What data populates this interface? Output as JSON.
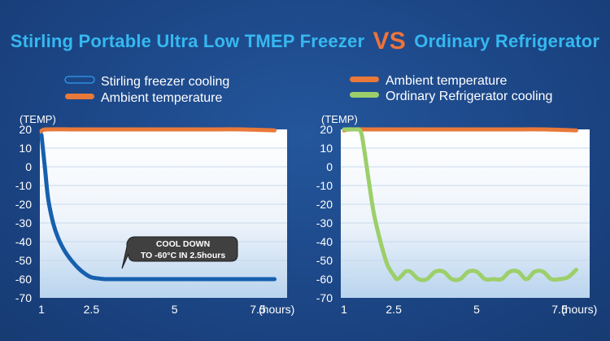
{
  "title": {
    "part1": "Stirling Portable Ultra Low TMEP Freezer",
    "vs": "VS",
    "part2": "Ordinary Refrigerator"
  },
  "colors": {
    "stirling": "#1660ae",
    "ambient": "#e8793a",
    "ordinary": "#9ccf6a",
    "title": "#35b8f0",
    "vs": "#f0733a"
  },
  "callout": {
    "line1": "COOL DOWN",
    "line2": "TO -60°C IN 2.5hours",
    "at_hours": 2.5,
    "at_temp": -60
  },
  "chart_data": [
    {
      "type": "line",
      "ylabel": "(TEMP)",
      "xlabel": "(hours)",
      "ylim": [
        -70,
        20
      ],
      "xlim": [
        1,
        8
      ],
      "yticks": [
        20,
        10,
        0,
        -10,
        -20,
        -30,
        -40,
        -50,
        -60,
        -70
      ],
      "xticks": [
        1,
        2.5,
        5,
        7.5
      ],
      "xtick_labels": [
        "1",
        "2.5",
        "5",
        "7.5"
      ],
      "grid": true,
      "legend": [
        "Stirling freezer cooling",
        "Ambient temperature"
      ],
      "series": [
        {
          "name": "Stirling freezer cooling",
          "color": "#1660ae",
          "x": [
            1,
            1.1,
            1.2,
            1.35,
            1.5,
            1.7,
            1.9,
            2.1,
            2.3,
            2.5,
            2.75,
            3,
            4,
            5,
            6,
            7,
            8
          ],
          "y": [
            17,
            0,
            -17,
            -30,
            -38,
            -45,
            -50,
            -54,
            -57,
            -59,
            -59.7,
            -60,
            -60,
            -60,
            -60,
            -60,
            -60
          ]
        },
        {
          "name": "Ambient temperature",
          "color": "#e8793a",
          "x": [
            1,
            1.15,
            2,
            3,
            4,
            5,
            6,
            7,
            8
          ],
          "y": [
            19,
            20,
            20,
            20,
            20,
            20,
            20,
            20,
            19.5
          ]
        }
      ]
    },
    {
      "type": "line",
      "ylabel": "(TEMP)",
      "xlabel": "(hours)",
      "ylim": [
        -70,
        20
      ],
      "xlim": [
        1,
        8
      ],
      "yticks": [
        20,
        10,
        0,
        -10,
        -20,
        -30,
        -40,
        -50,
        -60,
        -70
      ],
      "xticks": [
        1,
        2.5,
        5,
        7.5
      ],
      "xtick_labels": [
        "1",
        "2.5",
        "5",
        "7.5"
      ],
      "grid": true,
      "legend": [
        "Ambient temperature",
        "Ordinary Refrigerator cooling"
      ],
      "series": [
        {
          "name": "Ambient temperature",
          "color": "#e8793a",
          "x": [
            1,
            1.2,
            2,
            3,
            4,
            5,
            6,
            7,
            8
          ],
          "y": [
            19.5,
            20,
            20,
            20,
            20,
            20,
            20,
            20,
            19.5
          ]
        },
        {
          "name": "Ordinary Refrigerator cooling",
          "color": "#9ccf6a",
          "x": [
            1,
            1.3,
            1.5,
            1.6,
            1.75,
            1.9,
            2.1,
            2.3,
            2.5,
            2.6,
            2.75,
            2.85,
            3,
            3.25,
            3.5,
            3.75,
            4,
            4.25,
            4.5,
            4.75,
            5,
            5.25,
            5.5,
            5.75,
            6,
            6.25,
            6.5,
            6.75,
            7,
            7.25,
            7.5,
            7.75,
            8
          ],
          "y": [
            20,
            20,
            19,
            10,
            -8,
            -25,
            -40,
            -52,
            -58,
            -60,
            -58,
            -56,
            -56,
            -60,
            -60,
            -56,
            -56,
            -60,
            -60,
            -56,
            -56,
            -60,
            -60,
            -60,
            -56,
            -56,
            -60,
            -56,
            -56,
            -60,
            -60,
            -59,
            -55
          ]
        }
      ]
    }
  ]
}
